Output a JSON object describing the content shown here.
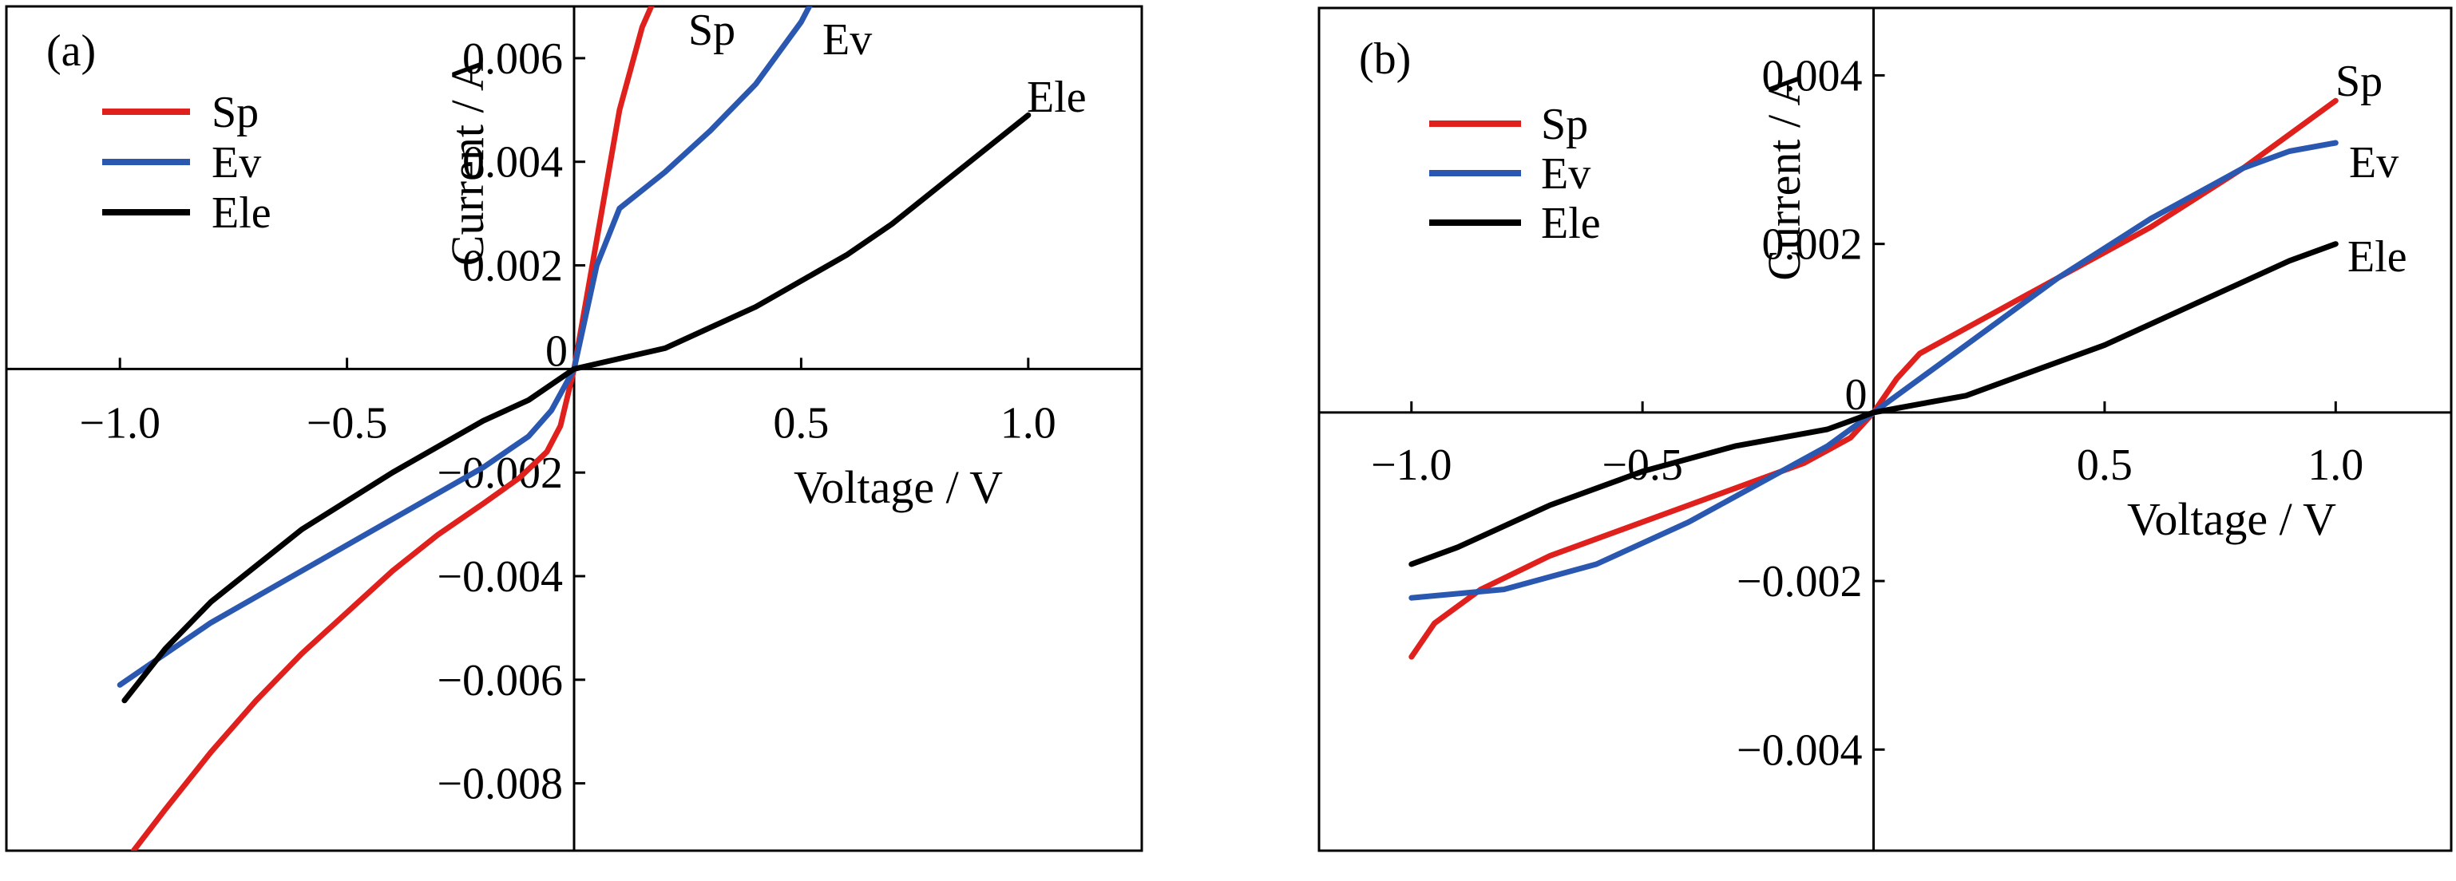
{
  "chart_data": [
    {
      "type": "line",
      "panel_label": "(a)",
      "xlabel": "Voltage / V",
      "ylabel": "Current / A",
      "xlim": [
        -1.25,
        1.25
      ],
      "ylim": [
        -0.0093,
        0.007
      ],
      "x_ticks": [
        -1.0,
        -0.5,
        0.5,
        1.0
      ],
      "x_tick_labels": [
        "−1.0",
        "−0.5",
        "0.5",
        "1.0"
      ],
      "y_ticks": [
        0.006,
        0.004,
        0.002,
        0,
        -0.002,
        -0.004,
        -0.006,
        -0.008
      ],
      "y_tick_labels": [
        "0.006",
        "0.004",
        "0.002",
        "0",
        "−0.002",
        "−0.004",
        "−0.006",
        "−0.008"
      ],
      "legend_position": "top-left",
      "legend": [
        "Sp",
        "Ev",
        "Ele"
      ],
      "series": [
        {
          "name": "Sp",
          "color": "#e0201c",
          "label": "Sp",
          "points": [
            [
              -0.97,
              -0.0093
            ],
            [
              -0.9,
              -0.0085
            ],
            [
              -0.8,
              -0.0074
            ],
            [
              -0.7,
              -0.0064
            ],
            [
              -0.6,
              -0.0055
            ],
            [
              -0.5,
              -0.0047
            ],
            [
              -0.4,
              -0.0039
            ],
            [
              -0.3,
              -0.0032
            ],
            [
              -0.2,
              -0.0026
            ],
            [
              -0.12,
              -0.0021
            ],
            [
              -0.06,
              -0.0016
            ],
            [
              -0.03,
              -0.0011
            ],
            [
              0,
              0
            ],
            [
              0.04,
              0.002
            ],
            [
              0.1,
              0.005
            ],
            [
              0.15,
              0.0066
            ],
            [
              0.18,
              0.0072
            ]
          ]
        },
        {
          "name": "Ev",
          "color": "#2a58b0",
          "label": "Ev",
          "points": [
            [
              -1.0,
              -0.0061
            ],
            [
              -0.95,
              -0.0058
            ],
            [
              -0.8,
              -0.0049
            ],
            [
              -0.6,
              -0.0039
            ],
            [
              -0.4,
              -0.0029
            ],
            [
              -0.2,
              -0.0019
            ],
            [
              -0.1,
              -0.0013
            ],
            [
              -0.05,
              -0.0008
            ],
            [
              0,
              0
            ],
            [
              0.05,
              0.002
            ],
            [
              0.1,
              0.0031
            ],
            [
              0.2,
              0.0038
            ],
            [
              0.3,
              0.0046
            ],
            [
              0.4,
              0.0055
            ],
            [
              0.5,
              0.0067
            ],
            [
              0.53,
              0.0072
            ]
          ]
        },
        {
          "name": "Ele",
          "color": "#000000",
          "label": "Ele",
          "points": [
            [
              -0.99,
              -0.0064
            ],
            [
              -0.9,
              -0.0054
            ],
            [
              -0.8,
              -0.0045
            ],
            [
              -0.6,
              -0.0031
            ],
            [
              -0.4,
              -0.002
            ],
            [
              -0.2,
              -0.001
            ],
            [
              -0.1,
              -0.0006
            ],
            [
              0,
              0
            ],
            [
              0.1,
              0.0002
            ],
            [
              0.2,
              0.0004
            ],
            [
              0.3,
              0.0008
            ],
            [
              0.4,
              0.0012
            ],
            [
              0.5,
              0.0017
            ],
            [
              0.6,
              0.0022
            ],
            [
              0.7,
              0.0028
            ],
            [
              0.8,
              0.0035
            ],
            [
              0.9,
              0.0042
            ],
            [
              1.0,
              0.0049
            ]
          ]
        }
      ]
    },
    {
      "type": "line",
      "panel_label": "(b)",
      "xlabel": "Voltage / V",
      "ylabel": "Current / A",
      "xlim": [
        -1.2,
        1.25
      ],
      "ylim": [
        -0.0052,
        0.0048
      ],
      "x_ticks": [
        -1.0,
        -0.5,
        0.5,
        1.0
      ],
      "x_tick_labels": [
        "−1.0",
        "−0.5",
        "0.5",
        "1.0"
      ],
      "y_ticks": [
        0.004,
        0.002,
        0,
        -0.002,
        -0.004
      ],
      "y_tick_labels": [
        "0.004",
        "0.002",
        "0",
        "−0.002",
        "−0.004"
      ],
      "legend_position": "top-left",
      "legend": [
        "Sp",
        "Ev",
        "Ele"
      ],
      "series": [
        {
          "name": "Sp",
          "color": "#e0201c",
          "label": "Sp",
          "points": [
            [
              -1.0,
              -0.0029
            ],
            [
              -0.95,
              -0.0025
            ],
            [
              -0.85,
              -0.0021
            ],
            [
              -0.7,
              -0.0017
            ],
            [
              -0.5,
              -0.0013
            ],
            [
              -0.3,
              -0.0009
            ],
            [
              -0.15,
              -0.0006
            ],
            [
              -0.05,
              -0.0003
            ],
            [
              0,
              0
            ],
            [
              0.05,
              0.0004
            ],
            [
              0.1,
              0.0007
            ],
            [
              0.2,
              0.001
            ],
            [
              0.4,
              0.0016
            ],
            [
              0.6,
              0.0022
            ],
            [
              0.8,
              0.0029
            ],
            [
              0.9,
              0.0033
            ],
            [
              1.0,
              0.0037
            ]
          ]
        },
        {
          "name": "Ev",
          "color": "#2a58b0",
          "label": "Ev",
          "points": [
            [
              -1.0,
              -0.0022
            ],
            [
              -0.8,
              -0.0021
            ],
            [
              -0.6,
              -0.0018
            ],
            [
              -0.4,
              -0.0013
            ],
            [
              -0.2,
              -0.0007
            ],
            [
              -0.1,
              -0.0004
            ],
            [
              0,
              0
            ],
            [
              0.2,
              0.0008
            ],
            [
              0.4,
              0.0016
            ],
            [
              0.6,
              0.0023
            ],
            [
              0.8,
              0.0029
            ],
            [
              0.9,
              0.0031
            ],
            [
              1.0,
              0.0032
            ]
          ]
        },
        {
          "name": "Ele",
          "color": "#000000",
          "label": "Ele",
          "points": [
            [
              -1.0,
              -0.0018
            ],
            [
              -0.9,
              -0.0016
            ],
            [
              -0.7,
              -0.0011
            ],
            [
              -0.5,
              -0.0007
            ],
            [
              -0.3,
              -0.0004
            ],
            [
              -0.1,
              -0.0002
            ],
            [
              0,
              0
            ],
            [
              0.1,
              0.0001
            ],
            [
              0.2,
              0.0002
            ],
            [
              0.3,
              0.0004
            ],
            [
              0.4,
              0.0006
            ],
            [
              0.5,
              0.0008
            ],
            [
              0.7,
              0.0013
            ],
            [
              0.9,
              0.0018
            ],
            [
              1.0,
              0.002
            ]
          ]
        }
      ]
    }
  ]
}
